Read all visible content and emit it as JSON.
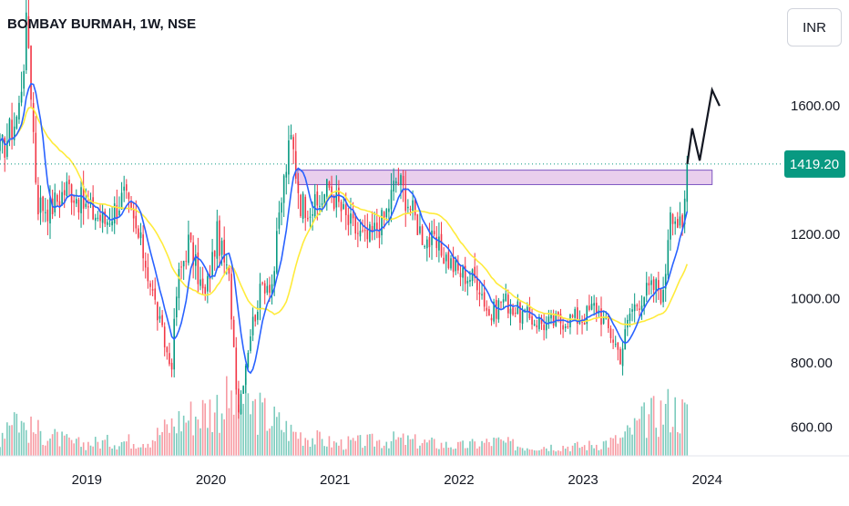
{
  "header": {
    "title": "BOMBAY BURMAH, 1W, NSE",
    "currency": "INR"
  },
  "chart_data": {
    "type": "candlestick",
    "title": "BOMBAY BURMAH, 1W, NSE",
    "ylim": [
      510,
      1930
    ],
    "xlim": [
      2018.3,
      2024.6
    ],
    "y_ticks": [
      {
        "value": 600,
        "label": "600.00"
      },
      {
        "value": 800,
        "label": "800.00"
      },
      {
        "value": 1000,
        "label": "1000.00"
      },
      {
        "value": 1200,
        "label": "1200.00"
      },
      {
        "value": 1600,
        "label": "1600.00"
      }
    ],
    "x_ticks": [
      {
        "value": 2019,
        "label": "2019"
      },
      {
        "value": 2020,
        "label": "2020"
      },
      {
        "value": 2021,
        "label": "2021"
      },
      {
        "value": 2022,
        "label": "2022"
      },
      {
        "value": 2023,
        "label": "2023"
      },
      {
        "value": 2024,
        "label": "2024"
      }
    ],
    "last_price": {
      "value": 1419.2,
      "label": "1419.20",
      "color": "#089981"
    },
    "colors": {
      "up": "#089981",
      "down": "#f23645",
      "ma_fast": "#2962ff",
      "ma_slow": "#ffeb3b",
      "zone": "#e1bee7",
      "zone_border": "#7e57c2",
      "arrow": "#131722",
      "grid_text": "#131722"
    },
    "resistance_zone": {
      "x0": 2020.7,
      "x1": 2024.04,
      "y_low": 1355,
      "y_high": 1400
    },
    "price_anchors": [
      [
        2018.3,
        1450
      ],
      [
        2018.45,
        1580
      ],
      [
        2018.52,
        1870
      ],
      [
        2018.6,
        1300
      ],
      [
        2018.7,
        1280
      ],
      [
        2018.85,
        1350
      ],
      [
        2019.0,
        1280
      ],
      [
        2019.15,
        1240
      ],
      [
        2019.3,
        1320
      ],
      [
        2019.45,
        1150
      ],
      [
        2019.6,
        900
      ],
      [
        2019.68,
        780
      ],
      [
        2019.73,
        1050
      ],
      [
        2019.82,
        1180
      ],
      [
        2019.95,
        1000
      ],
      [
        2020.05,
        1200
      ],
      [
        2020.15,
        1050
      ],
      [
        2020.22,
        650
      ],
      [
        2020.32,
        900
      ],
      [
        2020.42,
        1050
      ],
      [
        2020.5,
        1050
      ],
      [
        2020.55,
        1250
      ],
      [
        2020.6,
        1400
      ],
      [
        2020.65,
        1500
      ],
      [
        2020.72,
        1300
      ],
      [
        2020.85,
        1280
      ],
      [
        2020.95,
        1350
      ],
      [
        2021.1,
        1240
      ],
      [
        2021.25,
        1180
      ],
      [
        2021.4,
        1250
      ],
      [
        2021.5,
        1380
      ],
      [
        2021.58,
        1310
      ],
      [
        2021.7,
        1200
      ],
      [
        2021.85,
        1150
      ],
      [
        2022.0,
        1080
      ],
      [
        2022.15,
        1060
      ],
      [
        2022.25,
        940
      ],
      [
        2022.35,
        1000
      ],
      [
        2022.5,
        950
      ],
      [
        2022.7,
        920
      ],
      [
        2022.9,
        940
      ],
      [
        2023.0,
        940
      ],
      [
        2023.1,
        980
      ],
      [
        2023.25,
        870
      ],
      [
        2023.3,
        820
      ],
      [
        2023.38,
        960
      ],
      [
        2023.5,
        1020
      ],
      [
        2023.6,
        1040
      ],
      [
        2023.65,
        1000
      ],
      [
        2023.7,
        1300
      ],
      [
        2023.75,
        1250
      ],
      [
        2023.8,
        1200
      ],
      [
        2023.84,
        1419.2
      ]
    ],
    "volume_anchors": [
      [
        2018.3,
        0.25
      ],
      [
        2018.4,
        0.6
      ],
      [
        2018.5,
        0.35
      ],
      [
        2018.9,
        0.15
      ],
      [
        2019.5,
        0.2
      ],
      [
        2019.75,
        0.45
      ],
      [
        2020.2,
        0.7
      ],
      [
        2020.5,
        0.45
      ],
      [
        2020.65,
        0.3
      ],
      [
        2021.0,
        0.15
      ],
      [
        2021.5,
        0.2
      ],
      [
        2022.0,
        0.12
      ],
      [
        2022.3,
        0.18
      ],
      [
        2022.5,
        0.12
      ],
      [
        2023.0,
        0.12
      ],
      [
        2023.3,
        0.2
      ],
      [
        2023.5,
        0.45
      ],
      [
        2023.7,
        0.6
      ],
      [
        2023.84,
        0.5
      ]
    ],
    "projection": [
      [
        2023.84,
        1419.2
      ],
      [
        2023.88,
        1530
      ],
      [
        2023.94,
        1430
      ],
      [
        2024.04,
        1650
      ],
      [
        2024.1,
        1600
      ]
    ]
  }
}
